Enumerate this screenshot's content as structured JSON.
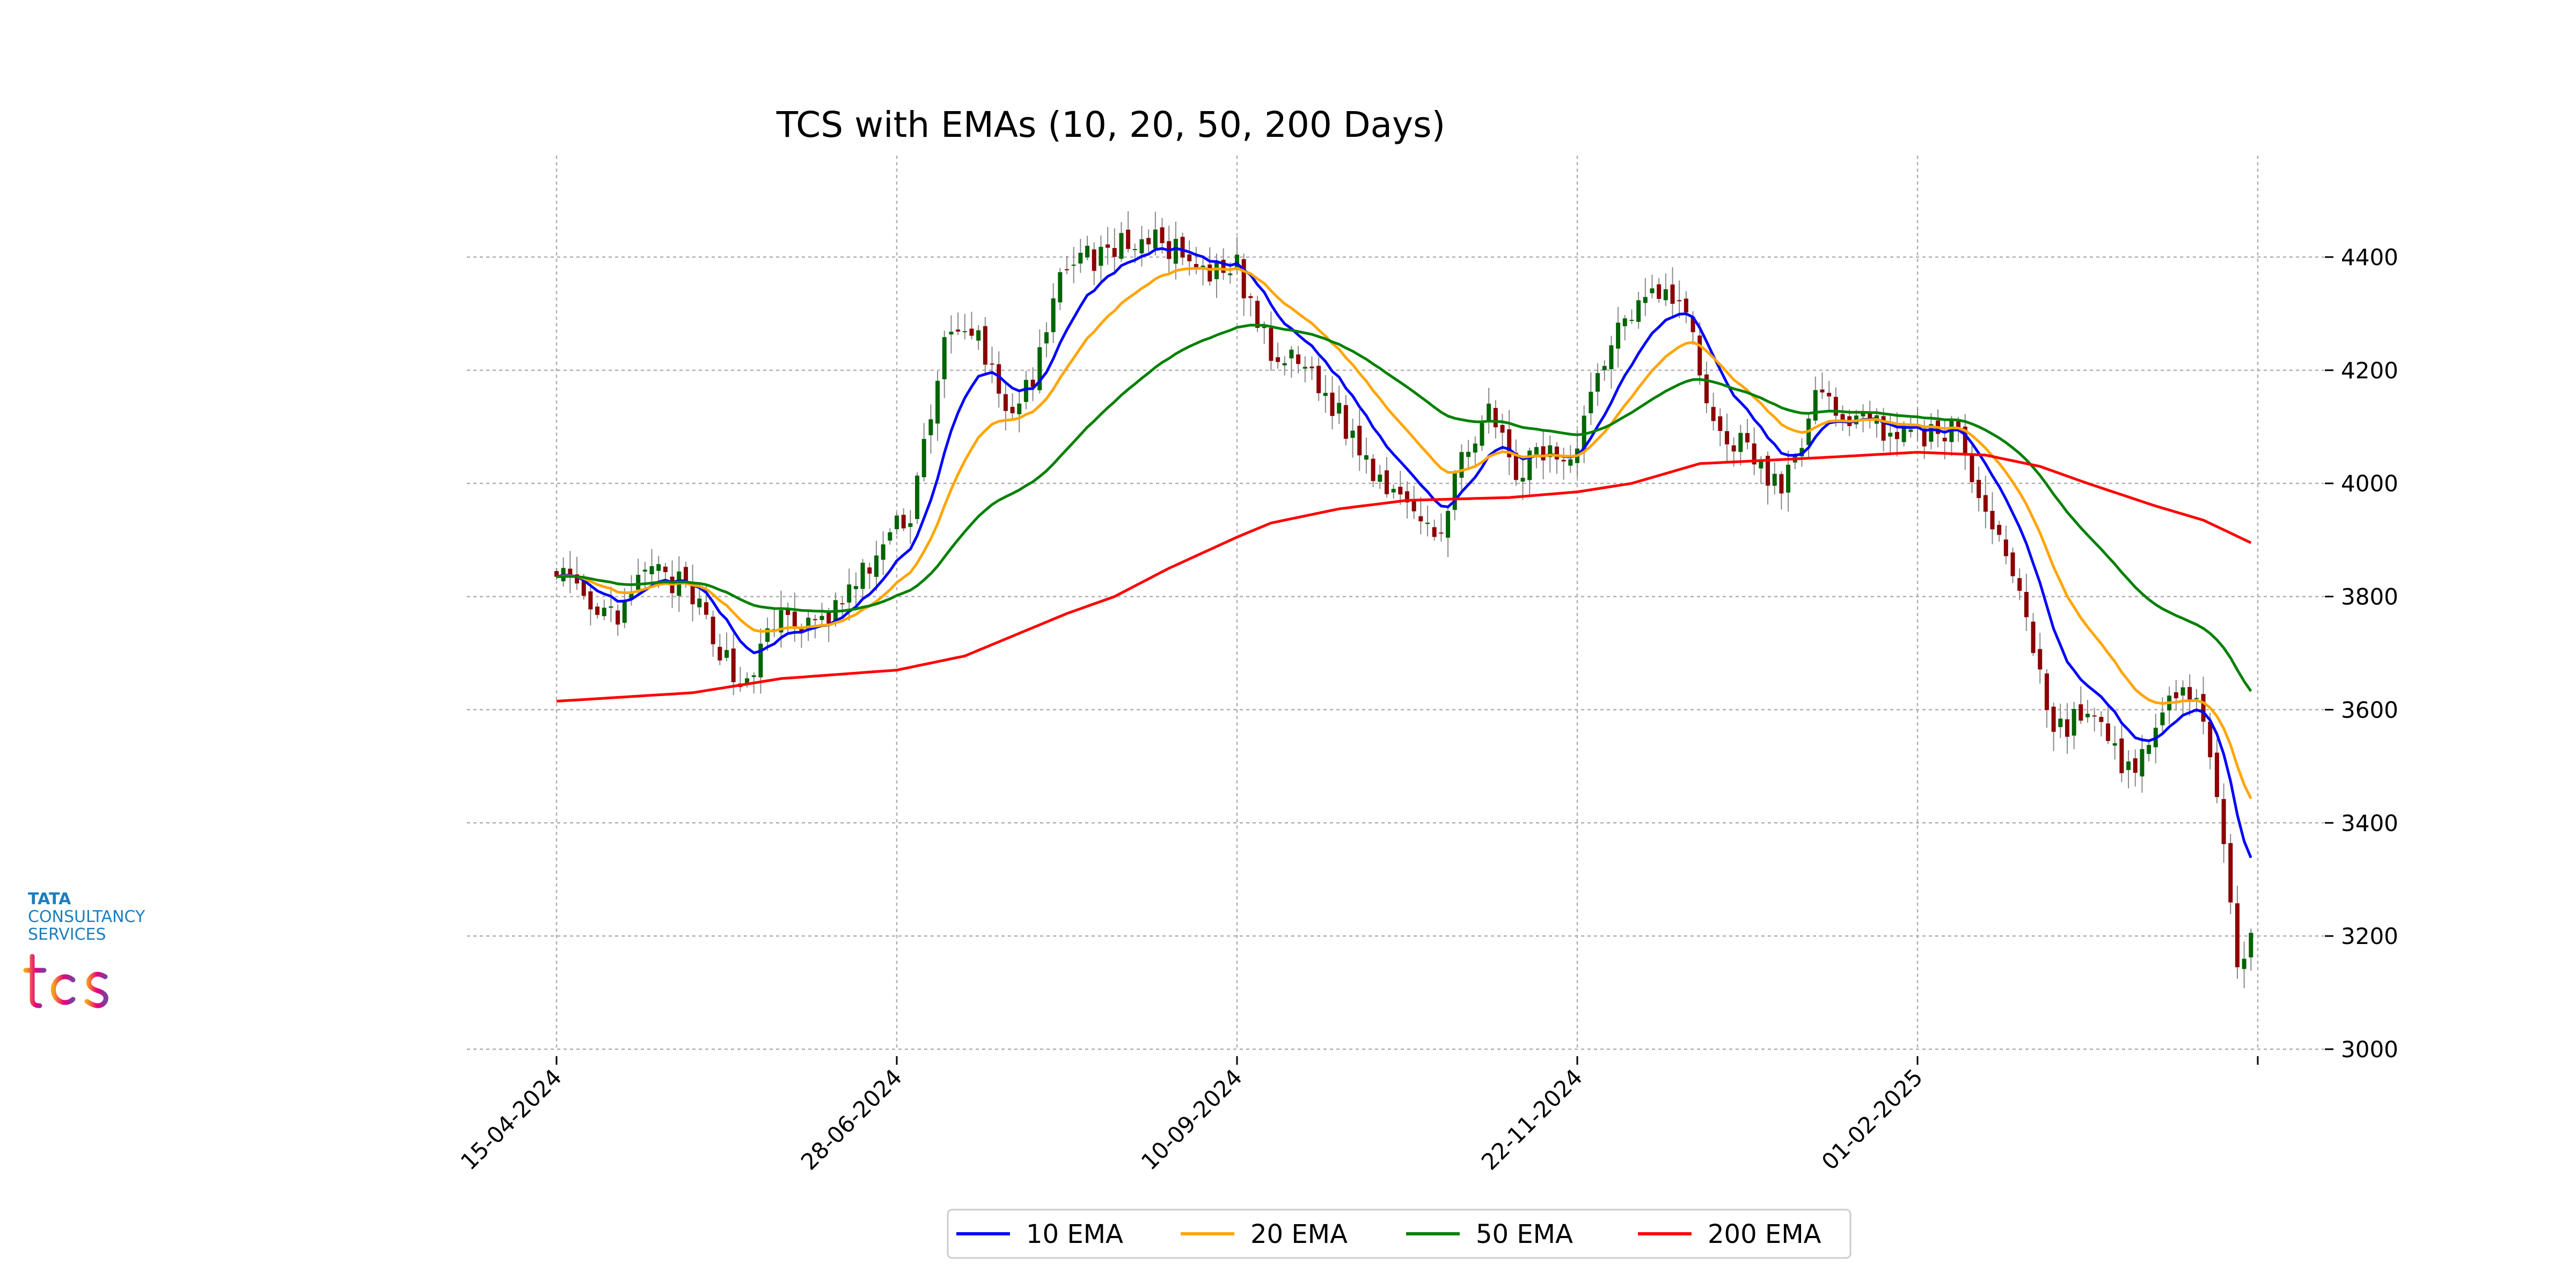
{
  "chart_data": {
    "type": "candlestick",
    "title": "TCS with EMAs (10, 20, 50, 200 Days)",
    "xlabel": "",
    "ylabel": "",
    "ylim": [
      3000,
      4530
    ],
    "yticks": [
      3000,
      3200,
      3400,
      3600,
      3800,
      4000,
      4200,
      4400
    ],
    "x_tick_labels": [
      "15-04-2024",
      "28-06-2024",
      "10-09-2024",
      "22-11-2024",
      "01-02-2025",
      ""
    ],
    "x_tick_bar_index": [
      0,
      50,
      100,
      150,
      200,
      250
    ],
    "grid": true,
    "legend_position": "bottom-center",
    "up_color": "#006400",
    "down_color": "#8b0000",
    "ohlc_anchors": [
      [
        0,
        3860
      ],
      [
        5,
        3760
      ],
      [
        10,
        3770
      ],
      [
        13,
        3850
      ],
      [
        18,
        3820
      ],
      [
        22,
        3760
      ],
      [
        27,
        3640
      ],
      [
        30,
        3700
      ],
      [
        33,
        3770
      ],
      [
        38,
        3740
      ],
      [
        44,
        3820
      ],
      [
        48,
        3890
      ],
      [
        52,
        3950
      ],
      [
        57,
        4250
      ],
      [
        62,
        4260
      ],
      [
        66,
        4130
      ],
      [
        70,
        4170
      ],
      [
        75,
        4400
      ],
      [
        79,
        4400
      ],
      [
        85,
        4430
      ],
      [
        90,
        4420
      ],
      [
        95,
        4360
      ],
      [
        100,
        4380
      ],
      [
        105,
        4220
      ],
      [
        110,
        4210
      ],
      [
        115,
        4120
      ],
      [
        120,
        4020
      ],
      [
        125,
        3980
      ],
      [
        130,
        3910
      ],
      [
        134,
        4080
      ],
      [
        137,
        4120
      ],
      [
        141,
        4010
      ],
      [
        144,
        4050
      ],
      [
        149,
        4050
      ],
      [
        155,
        4260
      ],
      [
        161,
        4360
      ],
      [
        166,
        4300
      ],
      [
        170,
        4100
      ],
      [
        175,
        4060
      ],
      [
        180,
        3980
      ],
      [
        185,
        4150
      ],
      [
        190,
        4120
      ],
      [
        195,
        4100
      ],
      [
        200,
        4080
      ],
      [
        205,
        4100
      ],
      [
        210,
        3950
      ],
      [
        215,
        3820
      ],
      [
        220,
        3560
      ],
      [
        225,
        3600
      ],
      [
        230,
        3500
      ],
      [
        234,
        3520
      ],
      [
        238,
        3640
      ],
      [
        242,
        3600
      ],
      [
        245,
        3350
      ],
      [
        247,
        3120
      ],
      [
        249,
        3230
      ]
    ],
    "series": [
      {
        "name": "10 EMA",
        "color": "#0000ff"
      },
      {
        "name": "20 EMA",
        "color": "#ffa500"
      },
      {
        "name": "50 EMA",
        "color": "#008000"
      },
      {
        "name": "200 EMA",
        "color": "#ff0000"
      }
    ],
    "ema_200_points": [
      [
        0,
        3615
      ],
      [
        20,
        3630
      ],
      [
        33,
        3655
      ],
      [
        50,
        3670
      ],
      [
        60,
        3695
      ],
      [
        68,
        3735
      ],
      [
        75,
        3770
      ],
      [
        82,
        3800
      ],
      [
        90,
        3850
      ],
      [
        100,
        3905
      ],
      [
        105,
        3930
      ],
      [
        115,
        3955
      ],
      [
        125,
        3970
      ],
      [
        140,
        3975
      ],
      [
        150,
        3985
      ],
      [
        158,
        4000
      ],
      [
        168,
        4035
      ],
      [
        185,
        4045
      ],
      [
        200,
        4055
      ],
      [
        210,
        4050
      ],
      [
        218,
        4030
      ],
      [
        225,
        4000
      ],
      [
        235,
        3960
      ],
      [
        242,
        3935
      ],
      [
        249,
        3895
      ]
    ]
  },
  "legend": {
    "items": [
      {
        "label": "10 EMA",
        "color": "#0000ff"
      },
      {
        "label": "20 EMA",
        "color": "#ffa500"
      },
      {
        "label": "50 EMA",
        "color": "#008000"
      },
      {
        "label": "200 EMA",
        "color": "#ff0000"
      }
    ]
  },
  "logo": {
    "line1": "TATA",
    "line2": "CONSULTANCY",
    "line3": "SERVICES",
    "mark": "tcs",
    "mark_colors": [
      "#f7a21b",
      "#e6007e",
      "#7b3fa0"
    ]
  }
}
